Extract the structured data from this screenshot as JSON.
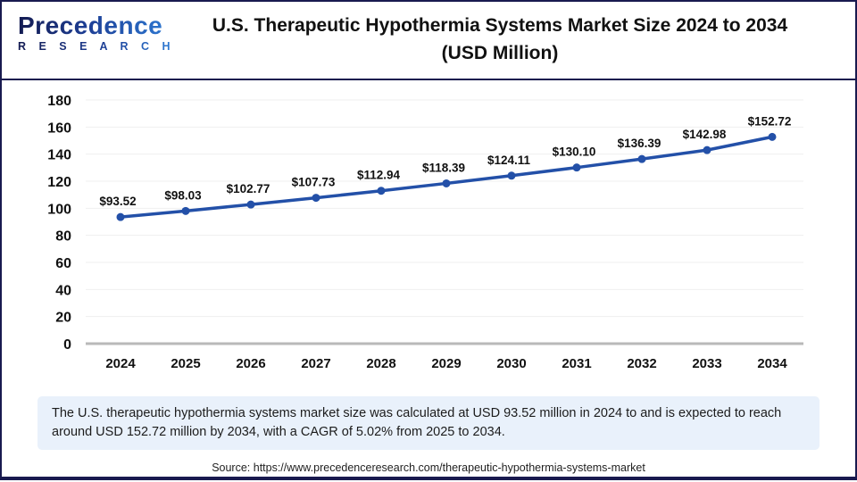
{
  "header": {
    "logo_line1": "Precedence",
    "logo_line2": "R E S E A R C H",
    "title_line1": "U.S. Therapeutic Hypothermia Systems Market Size 2024 to 2034",
    "title_line2": "(USD Million)"
  },
  "chart_data": {
    "type": "line",
    "title": "U.S. Therapeutic Hypothermia Systems Market Size 2024 to 2034 (USD Million)",
    "categories": [
      "2024",
      "2025",
      "2026",
      "2027",
      "2028",
      "2029",
      "2030",
      "2031",
      "2032",
      "2033",
      "2034"
    ],
    "values": [
      93.52,
      98.03,
      102.77,
      107.73,
      112.94,
      118.39,
      124.11,
      130.1,
      136.39,
      142.98,
      152.72
    ],
    "point_labels": [
      "$93.52",
      "$98.03",
      "$102.77",
      "$107.73",
      "$112.94",
      "$118.39",
      "$124.11",
      "$130.10",
      "$136.39",
      "$142.98",
      "$152.72"
    ],
    "xlabel": "",
    "ylabel": "",
    "ylim": [
      0,
      180
    ],
    "ytick_step": 20,
    "grid": true,
    "legend_position": "none"
  },
  "colors": {
    "line": "#2350a8",
    "marker": "#2350a8",
    "grid": "#efefef",
    "zero_axis": "#b9b9b9",
    "navy_accent": "#191a4f",
    "summary_bg": "#e9f1fb"
  },
  "summary": "The U.S. therapeutic hypothermia systems market size was calculated at USD 93.52 million in 2024 to and is expected to reach around USD 152.72 million by 2034, with a CAGR of 5.02% from 2025 to 2034.",
  "source": "Source: https://www.precedenceresearch.com/therapeutic-hypothermia-systems-market"
}
